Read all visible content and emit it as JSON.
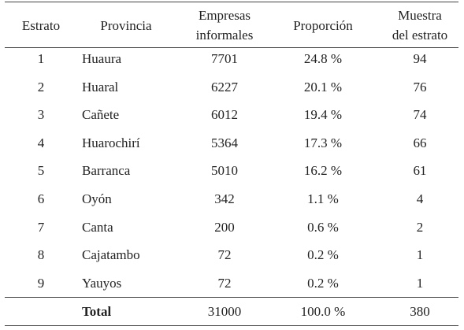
{
  "table": {
    "header": [
      [
        "Estrato"
      ],
      [
        "Provincia"
      ],
      [
        "Empresas",
        "informales"
      ],
      [
        "Proporción"
      ],
      [
        "Muestra",
        "del estrato"
      ]
    ],
    "rows": [
      [
        "1",
        "Huaura",
        "7701",
        "24.8 %",
        "94"
      ],
      [
        "2",
        "Huaral",
        "6227",
        "20.1 %",
        "76"
      ],
      [
        "3",
        "Cañete",
        "6012",
        "19.4 %",
        "74"
      ],
      [
        "4",
        "Huarochirí",
        "5364",
        "17.3 %",
        "66"
      ],
      [
        "5",
        "Barranca",
        "5010",
        "16.2 %",
        "61"
      ],
      [
        "6",
        "Oyón",
        "342",
        "1.1 %",
        "4"
      ],
      [
        "7",
        "Canta",
        "200",
        "0.6 %",
        "2"
      ],
      [
        "8",
        "Cajatambo",
        "72",
        "0.2 %",
        "1"
      ],
      [
        "9",
        "Yauyos",
        "72",
        "0.2 %",
        "1"
      ]
    ],
    "total": [
      "Total",
      "31000",
      "100.0 %",
      "380"
    ]
  }
}
